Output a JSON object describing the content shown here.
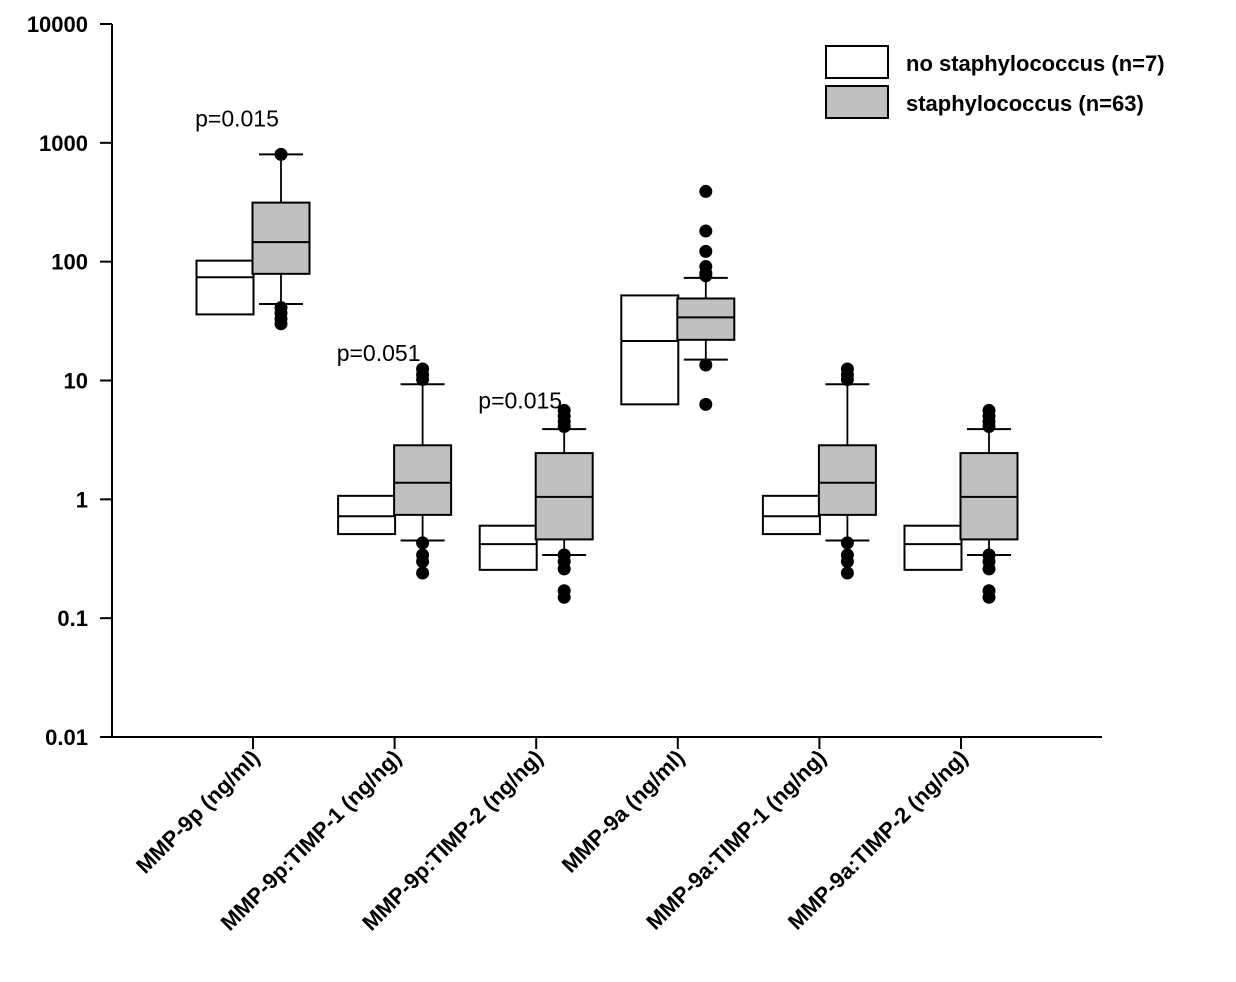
{
  "chart_data": {
    "type": "boxplot",
    "y_scale": "log",
    "ylim": [
      0.01,
      10000
    ],
    "yticks": [
      {
        "value": 0.01,
        "label": "0.01"
      },
      {
        "value": 0.1,
        "label": "0.1"
      },
      {
        "value": 1,
        "label": "1"
      },
      {
        "value": 10,
        "label": "10"
      },
      {
        "value": 100,
        "label": "100"
      },
      {
        "value": 1000,
        "label": "1000"
      },
      {
        "value": 10000,
        "label": "10000"
      }
    ],
    "categories": [
      "MMP-9p (ng/ml)",
      "MMP-9p:TIMP-1 (ng/ng)",
      "MMP-9p:TIMP-2 (ng/ng)",
      "MMP-9a (ng/ml)",
      "MMP-9a:TIMP-1 (ng/ng)",
      "MMP-9a:TIMP-2 (ng/ng)"
    ],
    "legend": {
      "position": "top-right",
      "entries": [
        {
          "label": "no staphylococcus (n=7)",
          "series": "no_staph"
        },
        {
          "label": "staphylococcus (n=63)",
          "series": "staph"
        }
      ]
    },
    "series": [
      {
        "id": "no_staph",
        "fill": "#ffffff",
        "boxes": [
          {
            "q1": 36,
            "median": 74,
            "q3": 102
          },
          {
            "q1": 0.51,
            "median": 0.72,
            "q3": 1.07
          },
          {
            "q1": 0.255,
            "median": 0.42,
            "q3": 0.6
          },
          {
            "q1": 6.3,
            "median": 21.5,
            "q3": 52
          },
          {
            "q1": 0.51,
            "median": 0.72,
            "q3": 1.07
          },
          {
            "q1": 0.255,
            "median": 0.42,
            "q3": 0.6
          }
        ]
      },
      {
        "id": "staph",
        "fill": "#c0c0c0",
        "boxes": [
          {
            "q1": 79,
            "median": 146,
            "q3": 314,
            "whisker_low": 44,
            "whisker_high": 800,
            "outliers": [
              30,
              33,
              37,
              41,
              800
            ]
          },
          {
            "q1": 0.74,
            "median": 1.38,
            "q3": 2.85,
            "whisker_low": 0.45,
            "whisker_high": 9.3,
            "outliers": [
              0.24,
              0.3,
              0.34,
              0.43,
              10.2,
              11.2,
              12.5
            ]
          },
          {
            "q1": 0.46,
            "median": 1.05,
            "q3": 2.45,
            "whisker_low": 0.34,
            "whisker_high": 3.9,
            "outliers": [
              0.15,
              0.17,
              0.26,
              0.3,
              0.34,
              4.1,
              4.5,
              5.0,
              5.6
            ]
          },
          {
            "q1": 22,
            "median": 34,
            "q3": 49,
            "whisker_low": 15,
            "whisker_high": 73,
            "outliers": [
              6.3,
              13.5,
              76,
              80,
              91,
              122,
              181,
              390
            ]
          },
          {
            "q1": 0.74,
            "median": 1.38,
            "q3": 2.85,
            "whisker_low": 0.45,
            "whisker_high": 9.3,
            "outliers": [
              0.24,
              0.3,
              0.34,
              0.43,
              10.2,
              11.2,
              12.5
            ]
          },
          {
            "q1": 0.46,
            "median": 1.05,
            "q3": 2.45,
            "whisker_low": 0.34,
            "whisker_high": 3.9,
            "outliers": [
              0.15,
              0.17,
              0.26,
              0.3,
              0.34,
              4.1,
              4.5,
              5.0,
              5.6
            ]
          }
        ]
      }
    ],
    "annotations": [
      {
        "text": "p=0.015",
        "category_index": 0,
        "y": 1600
      },
      {
        "text": "p=0.051",
        "category_index": 1,
        "y": 17
      },
      {
        "text": "p=0.015",
        "category_index": 2,
        "y": 6.8
      }
    ],
    "grid": false
  }
}
